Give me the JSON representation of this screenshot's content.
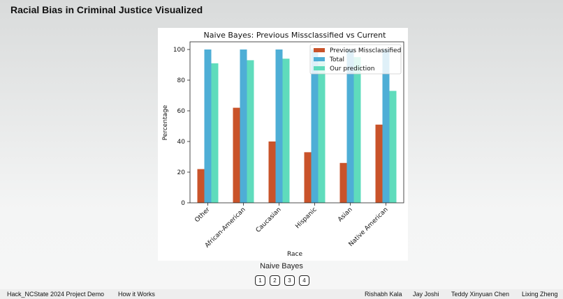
{
  "page": {
    "title": "Racial Bias in Criminal Justice Visualized"
  },
  "chart_caption": "Naive Bayes",
  "pager": {
    "pages": [
      "1",
      "2",
      "3",
      "4"
    ]
  },
  "footer": {
    "project": "Hack_NCState 2024 Project Demo",
    "how_it_works": "How it Works",
    "authors": [
      "Rishabh Kala",
      "Jay Joshi",
      "Teddy Xinyuan Chen",
      "Lixing Zheng"
    ]
  },
  "colors": {
    "previous": "#c9532a",
    "total": "#4eaed6",
    "prediction": "#5fdcbc"
  },
  "chart_data": {
    "type": "bar",
    "title": "Naive Bayes: Previous Missclassified vs Current",
    "xlabel": "Race",
    "ylabel": "Percentage",
    "ylim": [
      0,
      105
    ],
    "yticks": [
      0,
      20,
      40,
      60,
      80,
      100
    ],
    "categories": [
      "Other",
      "African-American",
      "Caucasian",
      "Hispanic",
      "Asian",
      "Native American"
    ],
    "series": [
      {
        "name": "Previous Missclassified",
        "values": [
          22,
          62,
          40,
          33,
          26,
          51
        ]
      },
      {
        "name": "Total",
        "values": [
          100,
          100,
          100,
          100,
          100,
          100
        ]
      },
      {
        "name": "Our prediction",
        "values": [
          91,
          93,
          94,
          92,
          95,
          73
        ]
      }
    ],
    "legend": "top-right"
  }
}
